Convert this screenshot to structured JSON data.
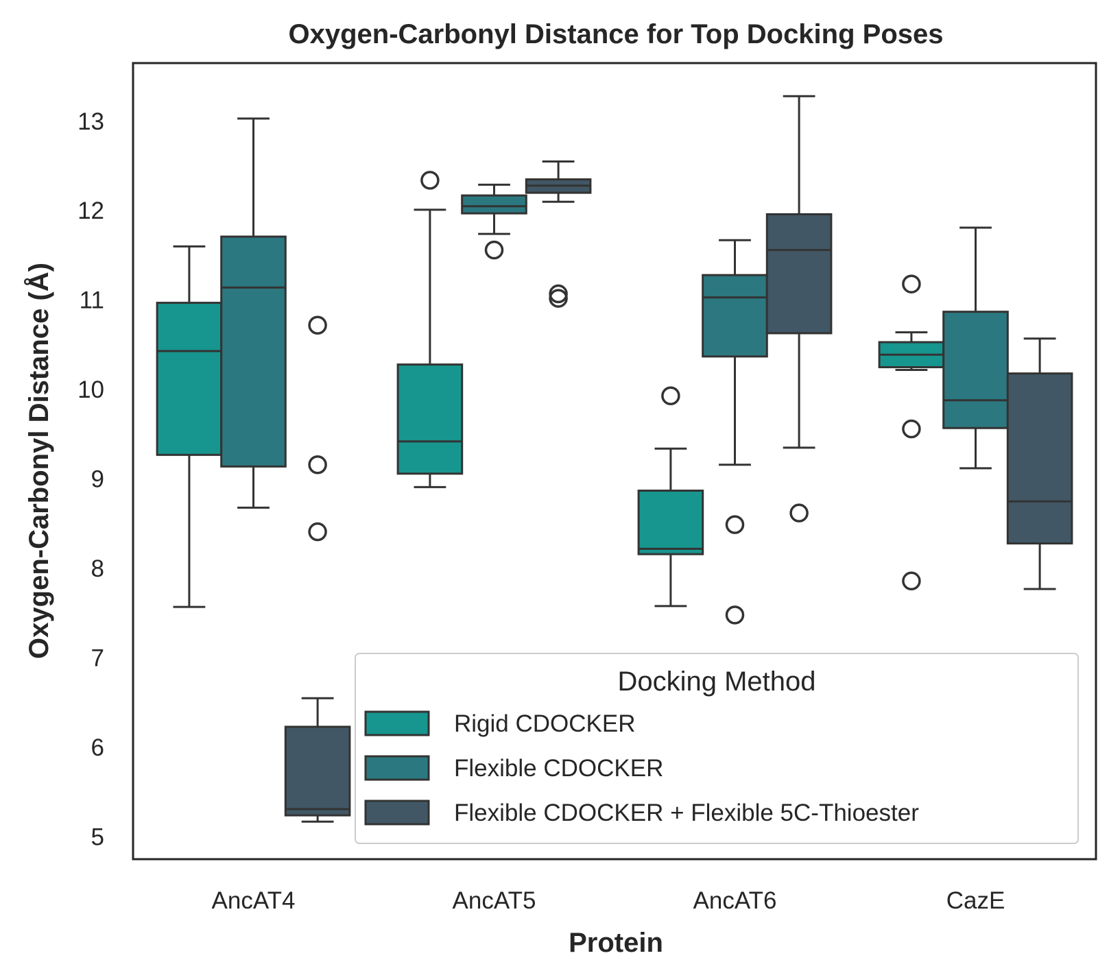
{
  "chart_data": {
    "type": "box",
    "title": "Oxygen-Carbonyl Distance for Top Docking Poses",
    "xlabel": "Protein",
    "ylabel": "Oxygen-Carbonyl Distance (Å)",
    "ylim": [
      4.75,
      13.65
    ],
    "yticks": [
      5,
      6,
      7,
      8,
      9,
      10,
      11,
      12,
      13
    ],
    "categories": [
      "AncAT4",
      "AncAT5",
      "AncAT6",
      "CazE"
    ],
    "grid": false,
    "legend": {
      "title": "Docking Method",
      "placement": "lower right"
    },
    "series": [
      {
        "name": "Rigid CDOCKER",
        "color": "#17968f",
        "boxes": [
          {
            "whisker_low": 7.57,
            "q1": 9.27,
            "median": 10.43,
            "q3": 10.97,
            "whisker_high": 11.6,
            "outliers": []
          },
          {
            "whisker_low": 8.91,
            "q1": 9.06,
            "median": 9.42,
            "q3": 10.28,
            "whisker_high": 12.01,
            "outliers": [
              12.34
            ]
          },
          {
            "whisker_low": 7.58,
            "q1": 8.16,
            "median": 8.22,
            "q3": 8.87,
            "whisker_high": 9.34,
            "outliers": [
              9.93
            ]
          },
          {
            "whisker_low": 10.22,
            "q1": 10.25,
            "median": 10.39,
            "q3": 10.53,
            "whisker_high": 10.64,
            "outliers": [
              11.18,
              9.56,
              7.86
            ]
          }
        ]
      },
      {
        "name": "Flexible CDOCKER",
        "color": "#2c7880",
        "boxes": [
          {
            "whisker_low": 8.68,
            "q1": 9.14,
            "median": 11.14,
            "q3": 11.71,
            "whisker_high": 13.03,
            "outliers": []
          },
          {
            "whisker_low": 11.74,
            "q1": 11.97,
            "median": 12.05,
            "q3": 12.17,
            "whisker_high": 12.29,
            "outliers": [
              11.56
            ]
          },
          {
            "whisker_low": 9.16,
            "q1": 10.37,
            "median": 11.03,
            "q3": 11.28,
            "whisker_high": 11.67,
            "outliers": [
              8.49,
              7.48
            ]
          },
          {
            "whisker_low": 9.12,
            "q1": 9.57,
            "median": 9.88,
            "q3": 10.87,
            "whisker_high": 11.81,
            "outliers": []
          }
        ]
      },
      {
        "name": "Flexible CDOCKER + Flexible 5C-Thioester",
        "color": "#415765",
        "boxes": [
          {
            "whisker_low": 5.17,
            "q1": 5.24,
            "median": 5.31,
            "q3": 6.23,
            "whisker_high": 6.55,
            "outliers": [
              10.72,
              9.16,
              8.41
            ]
          },
          {
            "whisker_low": 12.1,
            "q1": 12.2,
            "median": 12.28,
            "q3": 12.35,
            "whisker_high": 12.55,
            "outliers": [
              11.07,
              11.02
            ]
          },
          {
            "whisker_low": 9.35,
            "q1": 10.63,
            "median": 11.56,
            "q3": 11.96,
            "whisker_high": 13.28,
            "outliers": [
              8.62
            ]
          },
          {
            "whisker_low": 7.77,
            "q1": 8.28,
            "median": 8.75,
            "q3": 10.18,
            "whisker_high": 10.57,
            "outliers": []
          }
        ]
      }
    ]
  }
}
